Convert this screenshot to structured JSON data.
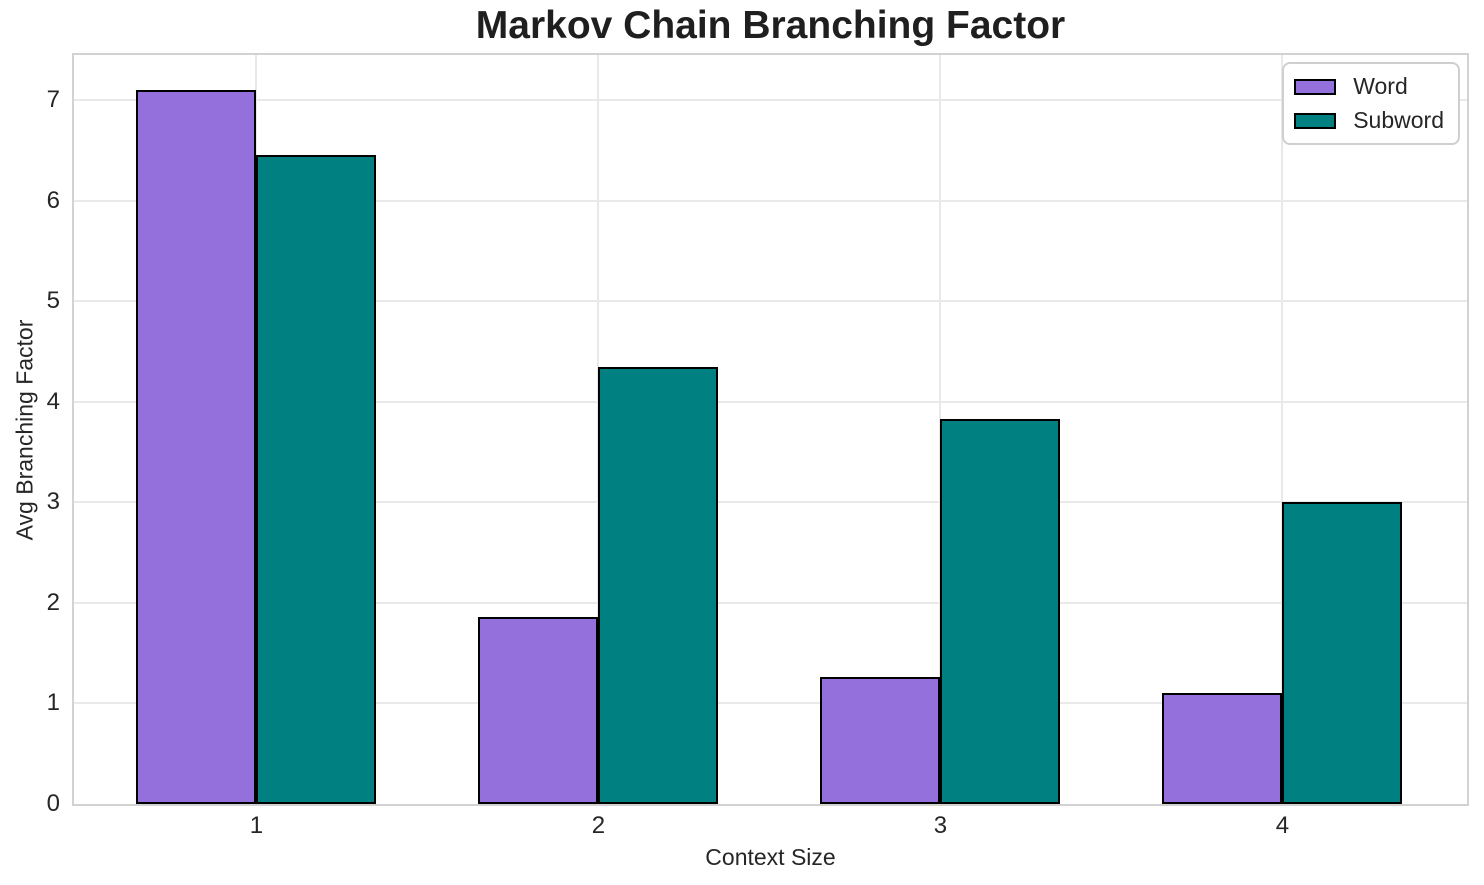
{
  "chart_data": {
    "type": "bar",
    "title": "Markov Chain Branching Factor",
    "xlabel": "Context Size",
    "ylabel": "Avg Branching Factor",
    "categories": [
      "1",
      "2",
      "3",
      "4"
    ],
    "series": [
      {
        "name": "Word",
        "color": "#9370DB",
        "values": [
          7.1,
          1.86,
          1.26,
          1.1
        ]
      },
      {
        "name": "Subword",
        "color": "#008080",
        "values": [
          6.46,
          4.35,
          3.83,
          3.0
        ]
      }
    ],
    "yticks": [
      0,
      1,
      2,
      3,
      4,
      5,
      6,
      7
    ],
    "ylim": [
      0,
      7.45
    ],
    "grid": true,
    "legend_position": "upper right",
    "bar_edge_color": "#000000",
    "grid_color": "#e9e9e9",
    "spine_color": "#d2d2d2",
    "text_color": "#262626",
    "title_color": "#1f1f1f"
  }
}
